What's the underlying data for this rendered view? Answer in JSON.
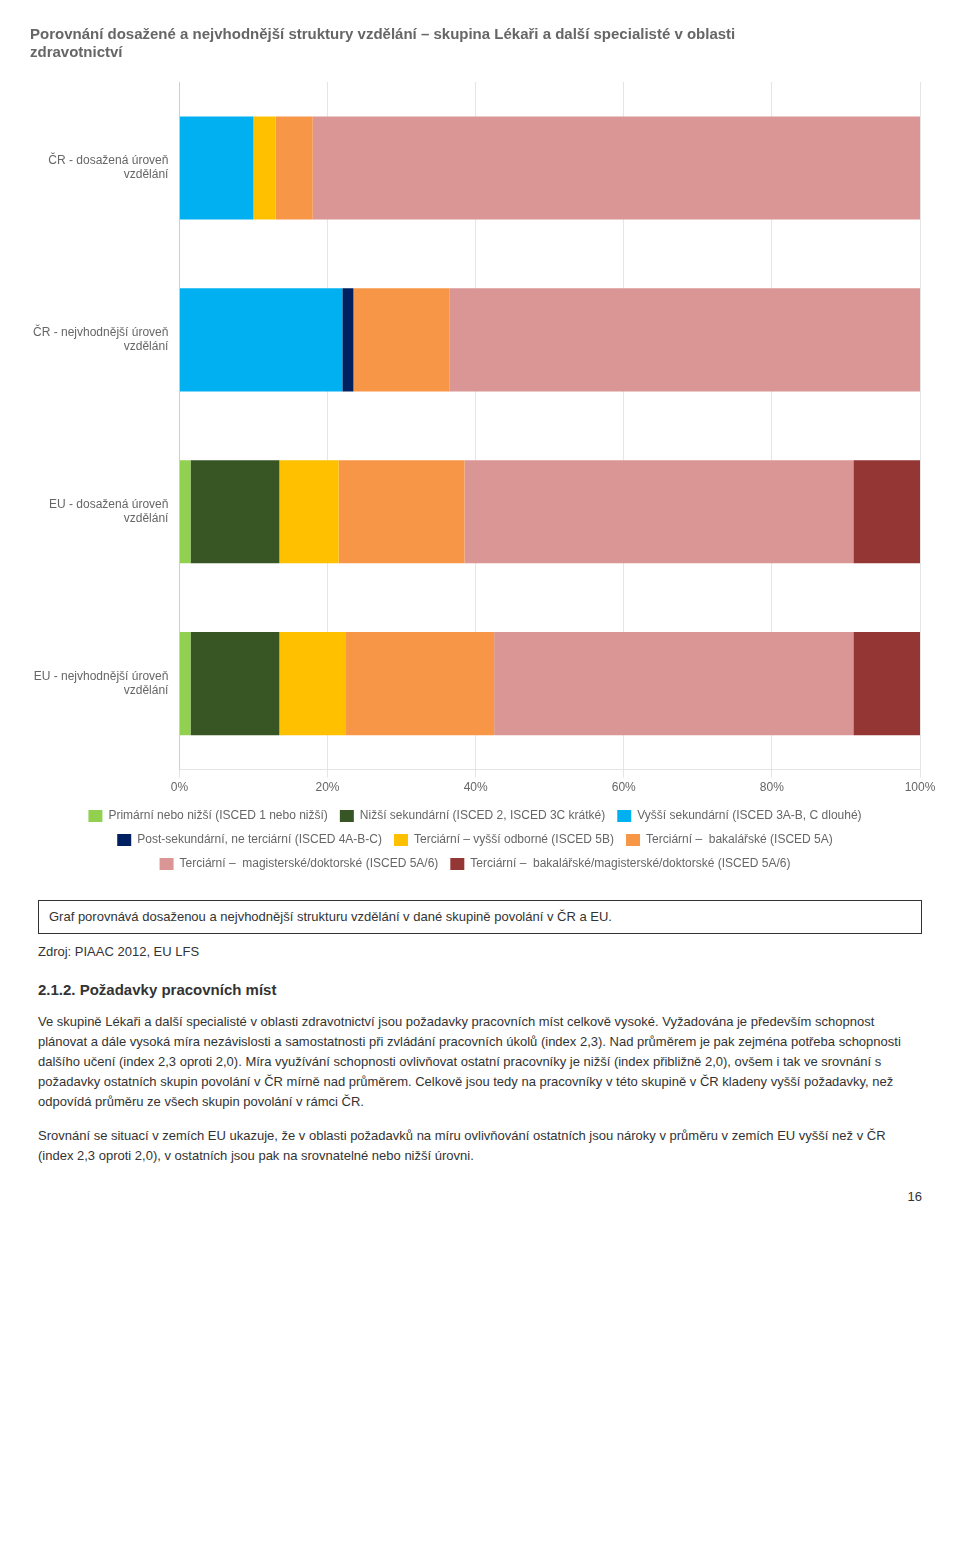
{
  "chart_data": {
    "type": "bar",
    "orientation": "horizontal",
    "stacked": true,
    "title": [
      "Porovnání dosažené a nejvhodnější struktury vzdělání – skupina Lékaři a další specialisté v oblasti",
      "zdravotnictví"
    ],
    "categories": [
      "ČR - dosažená úroveň\nvzdělání",
      "ČR - nejvhodnější úroveň\nvzdělání",
      "EU - dosažená úroveň\nvzdělání",
      "EU - nejvhodnější úroveň\nvzdělání"
    ],
    "series": [
      {
        "name": "Primární nebo nižší (ISCED 1 nebo nižší)",
        "color": "#92D050",
        "values": [
          0.0,
          0.0,
          1.5,
          1.5
        ]
      },
      {
        "name": "Nižší sekundární (ISCED 2, ISCED 3C krátké)",
        "color": "#375623",
        "values": [
          0.0,
          0.0,
          12.0,
          12.0
        ]
      },
      {
        "name": "Vyšší sekundární (ISCED 3A-B, C dlouhé)",
        "color": "#00B0F0",
        "values": [
          10.0,
          22.0,
          0.0,
          0.0
        ]
      },
      {
        "name": "Post-sekundární, ne terciární (ISCED 4A-B-C)",
        "color": "#002060",
        "values": [
          0.0,
          1.5,
          0.0,
          0.0
        ]
      },
      {
        "name": "Terciární – vyšší odborné (ISCED 5B)",
        "color": "#FFC000",
        "values": [
          3.0,
          0.0,
          8.0,
          9.0
        ]
      },
      {
        "name": "Terciární –  bakalářské (ISCED 5A)",
        "color": "#F79646",
        "values": [
          5.0,
          13.0,
          17.0,
          20.0
        ]
      },
      {
        "name": "Terciární –  magisterské/doktorské (ISCED 5A/6)",
        "color": "#DA9694",
        "values": [
          82.0,
          63.5,
          52.5,
          48.5
        ]
      },
      {
        "name": "Terciární –  bakalářské/magisterské/doktorské (ISCED 5A/6)",
        "color": "#943634",
        "values": [
          0.0,
          0.0,
          9.0,
          9.0
        ]
      }
    ],
    "xlim": [
      0,
      100
    ],
    "xticks": [
      {
        "value": 0,
        "label": "0%"
      },
      {
        "value": 20,
        "label": "20%"
      },
      {
        "value": 40,
        "label": "40%"
      },
      {
        "value": 60,
        "label": "60%"
      },
      {
        "value": 80,
        "label": "80%"
      },
      {
        "value": 100,
        "label": "100%"
      }
    ],
    "grid": true,
    "legend": "bottom",
    "annotations": [
      "Graf porovnává dosaženou a nejvhodnější strukturu vzdělání v dané skupině povolání v ČR a EU.",
      "Zdroj: PIAAC 2012, EU LFS",
      "2.1.2.  Požadavky pracovních míst",
      "Ve skupině Lékaři a další specialisté v oblasti zdravotnictví jsou požadavky pracovních míst celkově vysoké. Vyžadována je především schopnost plánovat a dále vysoká míra nezávislosti a samostatnosti při zvládání pracovních úkolů (index 2,3). Nad průměrem je pak zejména potřeba schopnosti dalšího učení (index 2,3 oproti 2,0). Míra využívání schopnosti ovlivňovat ostatní pracovníky je nižší (index přibližně 2,0), ovšem i tak ve srovnání s požadavky ostatních skupin povolání v ČR mírně nad průměrem. Celkově jsou tedy na pracovníky v této skupině v ČR kladeny vyšší požadavky, než odpovídá průměru ze všech skupin povolání v rámci ČR.",
      "Srovnání se situací v zemích EU ukazuje, že v oblasti požadavků na míru ovlivňování ostatních jsou nároky v průměru v zemích EU vyšší než v ČR (index 2,3 oproti 2,0), v ostatních jsou pak na srovnatelné nebo nižší úrovni.",
      "16"
    ]
  }
}
